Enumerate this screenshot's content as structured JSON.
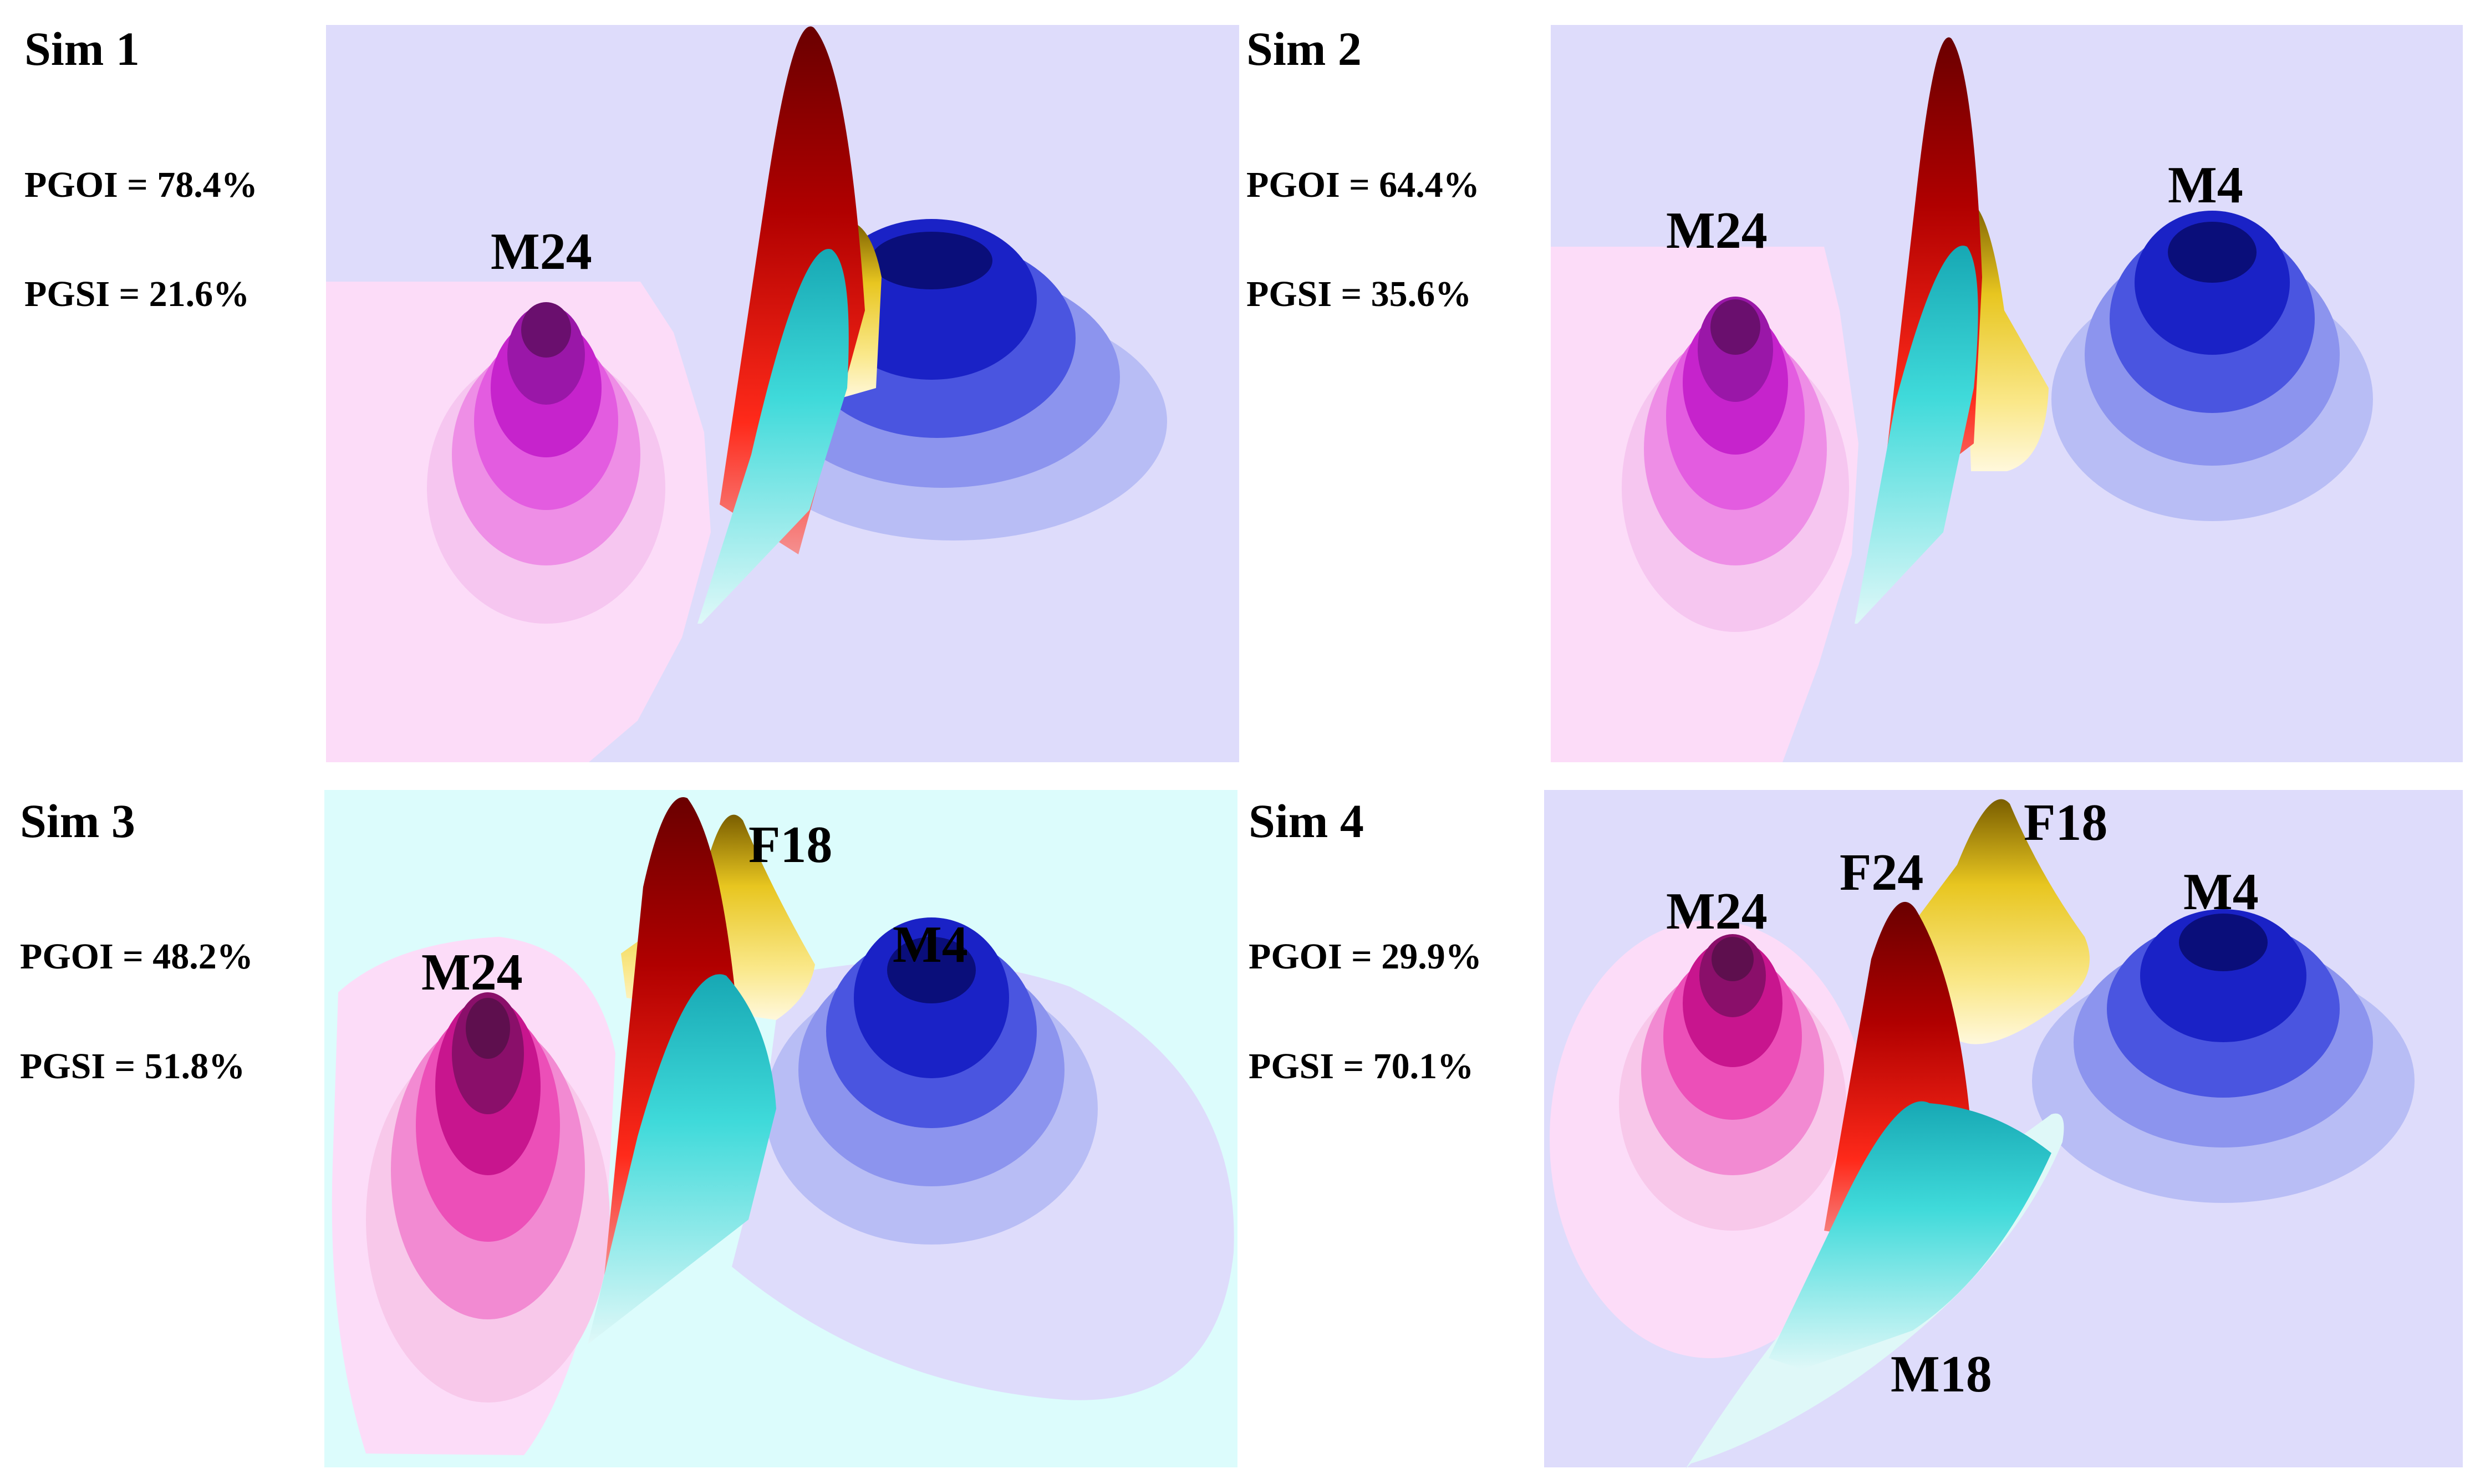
{
  "panels": [
    {
      "sim": "Sim 1",
      "pgoi": "PGOI = 78.4%",
      "pgsi": "PGSI =  21.6%",
      "labels": [
        "M24"
      ],
      "colors": {
        "background": "#dedcfb",
        "region": "#fcdcf8"
      }
    },
    {
      "sim": "Sim 2",
      "pgoi": "PGOI = 64.4%",
      "pgsi": "PGSI = 35.6%",
      "labels": [
        "M24",
        "M4"
      ],
      "colors": {
        "background": "#dedcfb",
        "region": "#fcdcf8"
      }
    },
    {
      "sim": "Sim 3",
      "pgoi": "PGOI = 48.2%",
      "pgsi": "PGSI = 51.8%",
      "labels": [
        "M24",
        "F18",
        "M4"
      ],
      "colors": {
        "background": "#dcfcfc",
        "region": "#fcdcf8"
      }
    },
    {
      "sim": "Sim 4",
      "pgoi": "PGOI = 29.9%",
      "pgsi": "PGSI = 70.1%",
      "labels": [
        "M24",
        "F24",
        "F18",
        "M4",
        "M18"
      ],
      "colors": {
        "background": "#dedcfb",
        "region": "#fcdcf8"
      }
    }
  ],
  "peak_colors": {
    "magenta": [
      "#f6c6f0",
      "#ee8ee6",
      "#d93bd8",
      "#b315c0",
      "#6a0f6e"
    ],
    "blue": [
      "#b8bdf5",
      "#8c94ee",
      "#4a55e0",
      "#1a22c6",
      "#0a0e7a"
    ],
    "red": [
      "#ff2a1a",
      "#d00a00",
      "#7a0000"
    ],
    "cyan": [
      "#dff8f8",
      "#66e6e6",
      "#17b7c2"
    ],
    "yellow": [
      "#fff4c8",
      "#f2d630",
      "#8a6a00"
    ]
  }
}
